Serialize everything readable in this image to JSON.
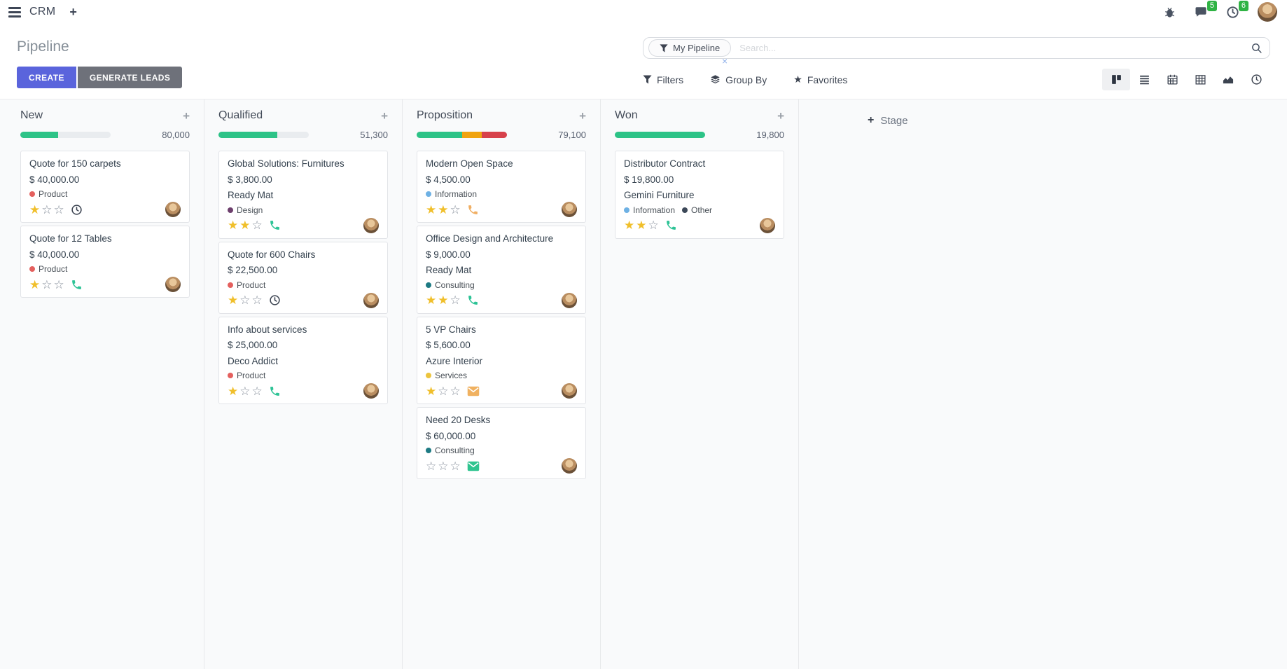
{
  "navbar": {
    "app_name": "CRM",
    "message_badge": "5",
    "activity_badge": "6"
  },
  "header": {
    "title": "Pipeline",
    "create": "CREATE",
    "generate_leads": "GENERATE LEADS"
  },
  "search": {
    "facet_label": "My Pipeline",
    "placeholder": "Search...",
    "remove_facet": "×"
  },
  "controls": {
    "filters": "Filters",
    "group_by": "Group By",
    "favorites": "Favorites"
  },
  "stage_add": {
    "label": "Stage"
  },
  "colors": {
    "accent": "#5a64dc",
    "badge_green": "#2fb344",
    "progress_green": "#2dc387",
    "progress_orange": "#f0a30f",
    "progress_red": "#d7414b",
    "star_gold": "#f0bf2b"
  },
  "columns": [
    {
      "name": "New",
      "total": "80,000",
      "progress": [
        {
          "color": "#2dc387",
          "pct": 42
        }
      ],
      "cards": [
        {
          "title": "Quote for 150 carpets",
          "amount": "$ 40,000.00",
          "partner": null,
          "tags": [
            {
              "label": "Product",
              "color": "#e4605e"
            }
          ],
          "stars": 1,
          "icon": {
            "name": "clock-icon",
            "color": "#39414f"
          }
        },
        {
          "title": "Quote for 12 Tables",
          "amount": "$ 40,000.00",
          "partner": null,
          "tags": [
            {
              "label": "Product",
              "color": "#e4605e"
            }
          ],
          "stars": 1,
          "icon": {
            "name": "phone-icon",
            "color": "#2dc396"
          }
        }
      ]
    },
    {
      "name": "Qualified",
      "total": "51,300",
      "progress": [
        {
          "color": "#2dc387",
          "pct": 65
        }
      ],
      "cards": [
        {
          "title": "Global Solutions: Furnitures",
          "amount": "$ 3,800.00",
          "partner": "Ready Mat",
          "tags": [
            {
              "label": "Design",
              "color": "#6d3f6d"
            }
          ],
          "stars": 2,
          "icon": {
            "name": "phone-icon",
            "color": "#2dc396"
          }
        },
        {
          "title": "Quote for 600 Chairs",
          "amount": "$ 22,500.00",
          "partner": null,
          "tags": [
            {
              "label": "Product",
              "color": "#e4605e"
            }
          ],
          "stars": 1,
          "icon": {
            "name": "clock-icon",
            "color": "#39414f"
          }
        },
        {
          "title": "Info about services",
          "amount": "$ 25,000.00",
          "partner": "Deco Addict",
          "tags": [
            {
              "label": "Product",
              "color": "#e4605e"
            }
          ],
          "stars": 1,
          "icon": {
            "name": "phone-icon",
            "color": "#2dc396"
          }
        }
      ]
    },
    {
      "name": "Proposition",
      "total": "79,100",
      "progress": [
        {
          "color": "#2dc387",
          "pct": 50
        },
        {
          "color": "#f0a30f",
          "pct": 22
        },
        {
          "color": "#d7414b",
          "pct": 28
        }
      ],
      "cards": [
        {
          "title": "Modern Open Space",
          "amount": "$ 4,500.00",
          "partner": null,
          "tags": [
            {
              "label": "Information",
              "color": "#6eb1e4"
            }
          ],
          "stars": 2,
          "icon": {
            "name": "phone-icon",
            "color": "#f0af64"
          }
        },
        {
          "title": "Office Design and Architecture",
          "amount": "$ 9,000.00",
          "partner": "Ready Mat",
          "tags": [
            {
              "label": "Consulting",
              "color": "#1d7a83"
            }
          ],
          "stars": 2,
          "icon": {
            "name": "phone-icon",
            "color": "#2dc396"
          }
        },
        {
          "title": "5 VP Chairs",
          "amount": "$ 5,600.00",
          "partner": "Azure Interior",
          "tags": [
            {
              "label": "Services",
              "color": "#ecc43d"
            }
          ],
          "stars": 1,
          "icon": {
            "name": "mail-icon",
            "color": "#f0b160"
          }
        },
        {
          "title": "Need 20 Desks",
          "amount": "$ 60,000.00",
          "partner": null,
          "tags": [
            {
              "label": "Consulting",
              "color": "#1d7a83"
            }
          ],
          "stars": 0,
          "icon": {
            "name": "mail-icon",
            "color": "#2ec48f"
          }
        }
      ]
    },
    {
      "name": "Won",
      "total": "19,800",
      "progress": [
        {
          "color": "#2dc387",
          "pct": 100
        }
      ],
      "cards": [
        {
          "title": "Distributor Contract",
          "amount": "$ 19,800.00",
          "partner": "Gemini Furniture",
          "tags": [
            {
              "label": "Information",
              "color": "#6eb1e4"
            },
            {
              "label": "Other",
              "color": "#3c4858"
            }
          ],
          "stars": 2,
          "icon": {
            "name": "phone-icon",
            "color": "#2dc396"
          }
        }
      ]
    }
  ]
}
